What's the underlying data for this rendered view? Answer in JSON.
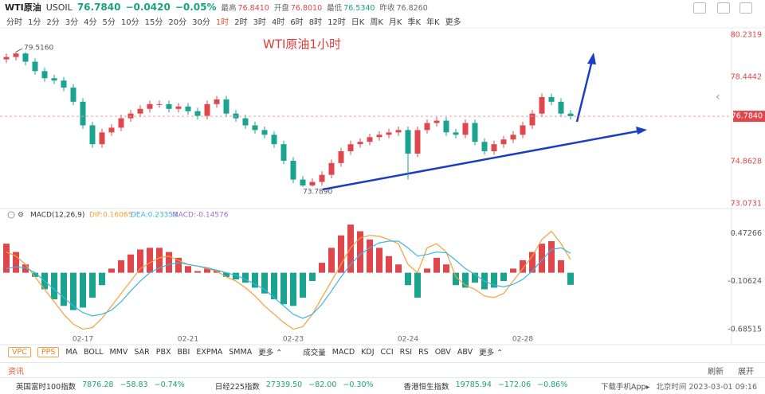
{
  "header": {
    "name": "WTI原油",
    "code": "USOIL",
    "price": "76.7840",
    "change": "−0.0420",
    "change_pct": "−0.05%",
    "stats": [
      {
        "label": "最高",
        "value": "76.8410"
      },
      {
        "label": "开盘",
        "value": "76.8010"
      },
      {
        "label": "最低",
        "value": "76.5340"
      },
      {
        "label": "昨收",
        "value": "76.8260"
      }
    ]
  },
  "periods": {
    "items": [
      "分时",
      "1分",
      "2分",
      "3分",
      "4分",
      "5分",
      "10分",
      "15分",
      "20分",
      "30分",
      "1时",
      "2时",
      "3时",
      "4时",
      "6时",
      "8时",
      "12时",
      "日K",
      "周K",
      "月K",
      "季K",
      "年K",
      "更多"
    ],
    "active": 10
  },
  "chart_data": [
    {
      "type": "candlestick",
      "title": "WTI原油1小时",
      "up_color": "#e0474c",
      "down_color": "#1aa38f",
      "categories": [
        null,
        null,
        null,
        null,
        null,
        null,
        null,
        null,
        "02-17",
        null,
        null,
        null,
        null,
        null,
        null,
        null,
        null,
        null,
        null,
        "02-21",
        null,
        null,
        null,
        null,
        null,
        null,
        null,
        null,
        null,
        null,
        "02-23",
        null,
        null,
        null,
        null,
        null,
        null,
        null,
        null,
        null,
        null,
        null,
        "02-24",
        null,
        null,
        null,
        null,
        null,
        null,
        null,
        null,
        null,
        null,
        null,
        "02-28",
        null,
        null,
        null,
        null,
        null
      ],
      "open": [
        79.2,
        79.3,
        79.45,
        79.1,
        78.7,
        78.4,
        78.3,
        78.0,
        77.4,
        76.4,
        75.6,
        76.1,
        76.3,
        76.7,
        76.9,
        77.1,
        77.3,
        77.3,
        77.1,
        77.2,
        77.0,
        76.8,
        77.3,
        77.5,
        76.9,
        76.7,
        76.4,
        76.2,
        76.0,
        75.6,
        74.9,
        74.1,
        73.85,
        74.0,
        74.3,
        74.8,
        75.3,
        75.6,
        75.7,
        75.9,
        76.0,
        76.1,
        76.2,
        75.2,
        76.2,
        76.5,
        76.6,
        76.1,
        76.0,
        76.5,
        75.7,
        75.3,
        75.6,
        75.8,
        76.0,
        76.4,
        76.9,
        77.6,
        77.4,
        76.9
      ],
      "high": [
        79.45,
        79.516,
        79.5,
        79.25,
        78.85,
        78.55,
        78.45,
        78.15,
        77.55,
        76.55,
        76.25,
        76.45,
        76.85,
        77.05,
        77.25,
        77.45,
        77.45,
        77.45,
        77.35,
        77.35,
        77.15,
        77.45,
        77.65,
        77.65,
        77.05,
        76.85,
        76.55,
        76.35,
        76.15,
        75.75,
        75.05,
        74.25,
        74.15,
        74.45,
        74.95,
        75.45,
        75.75,
        75.85,
        76.05,
        76.15,
        76.25,
        76.35,
        76.35,
        76.35,
        76.65,
        76.75,
        76.75,
        76.25,
        76.65,
        76.65,
        75.85,
        75.75,
        75.95,
        76.15,
        76.55,
        77.05,
        77.75,
        77.75,
        77.55,
        77.05
      ],
      "low": [
        79.05,
        79.15,
        78.95,
        78.55,
        78.25,
        78.15,
        77.85,
        77.25,
        76.25,
        75.45,
        75.45,
        75.95,
        76.15,
        76.55,
        76.75,
        76.95,
        77.15,
        76.95,
        76.95,
        76.85,
        76.65,
        76.65,
        77.15,
        76.75,
        76.55,
        76.25,
        76.05,
        75.85,
        75.45,
        74.75,
        73.95,
        73.789,
        73.8,
        73.85,
        74.15,
        74.65,
        75.15,
        75.45,
        75.55,
        75.75,
        75.85,
        75.95,
        74.1,
        75.05,
        76.05,
        76.35,
        75.95,
        75.85,
        75.85,
        75.55,
        75.15,
        75.15,
        75.45,
        75.65,
        75.85,
        76.25,
        76.75,
        77.25,
        76.75,
        76.65
      ],
      "close": [
        79.3,
        79.45,
        79.1,
        78.7,
        78.4,
        78.3,
        78.0,
        77.4,
        76.4,
        75.6,
        76.1,
        76.3,
        76.7,
        76.9,
        77.1,
        77.3,
        77.3,
        77.1,
        77.2,
        77.0,
        76.8,
        77.3,
        77.5,
        76.9,
        76.7,
        76.4,
        76.2,
        76.0,
        75.6,
        74.9,
        74.1,
        73.85,
        74.0,
        74.3,
        74.8,
        75.3,
        75.6,
        75.7,
        75.9,
        76.0,
        76.1,
        76.2,
        75.2,
        76.2,
        76.5,
        76.6,
        76.1,
        76.0,
        76.5,
        75.7,
        75.3,
        75.6,
        75.8,
        76.0,
        76.4,
        76.9,
        77.6,
        77.4,
        76.9,
        76.784
      ],
      "ylim": [
        73.0731,
        80.2319
      ],
      "yticks": [
        73.0731,
        74.8628,
        78.4442,
        80.2319
      ],
      "annotations": {
        "high_label": "79.5160",
        "low_label": "73.7890"
      }
    },
    {
      "type": "macd",
      "title": "MACD(12,26,9)",
      "ylim": [
        -0.79,
        0.62
      ],
      "yticks": [
        -0.68515,
        -0.10624,
        0.47266
      ],
      "histogram": {
        "label": "MACD:-0.14576",
        "label_color": "#a070d0",
        "up_color": "#e0474c",
        "down_color": "#1aa38f",
        "values": [
          0.35,
          0.25,
          0.1,
          -0.05,
          -0.2,
          -0.32,
          -0.4,
          -0.45,
          -0.42,
          -0.3,
          -0.15,
          0.05,
          0.15,
          0.22,
          0.28,
          0.3,
          0.3,
          0.25,
          0.18,
          0.08,
          0.02,
          0.05,
          0.03,
          -0.05,
          -0.08,
          -0.12,
          -0.18,
          -0.25,
          -0.32,
          -0.38,
          -0.4,
          -0.3,
          -0.1,
          0.12,
          0.3,
          0.45,
          0.58,
          0.5,
          0.4,
          0.3,
          0.2,
          0.1,
          -0.15,
          -0.3,
          0.05,
          0.18,
          0.1,
          -0.15,
          -0.18,
          -0.12,
          -0.2,
          -0.18,
          -0.1,
          0.05,
          0.15,
          0.25,
          0.35,
          0.38,
          0.15,
          -0.14576
        ]
      },
      "series": [
        {
          "label": "DIF:0.16065",
          "color": "#f5a03a",
          "values": [
            0.25,
            0.2,
            0.1,
            -0.05,
            -0.2,
            -0.35,
            -0.5,
            -0.62,
            -0.68,
            -0.66,
            -0.55,
            -0.4,
            -0.25,
            -0.1,
            0.05,
            0.12,
            0.18,
            0.2,
            0.15,
            0.1,
            0.08,
            0.05,
            0.02,
            -0.05,
            -0.1,
            -0.18,
            -0.28,
            -0.4,
            -0.5,
            -0.6,
            -0.68,
            -0.65,
            -0.5,
            -0.3,
            -0.1,
            0.1,
            0.3,
            0.42,
            0.45,
            0.44,
            0.4,
            0.35,
            0.1,
            0.0,
            0.3,
            0.35,
            0.25,
            -0.05,
            -0.15,
            -0.2,
            -0.28,
            -0.3,
            -0.25,
            -0.1,
            0.05,
            0.2,
            0.4,
            0.5,
            0.35,
            0.16065
          ]
        },
        {
          "label": "DEA:0.23353",
          "color": "#3cb4e6",
          "values": [
            0.05,
            0.07,
            0.06,
            0.0,
            -0.1,
            -0.2,
            -0.3,
            -0.4,
            -0.48,
            -0.52,
            -0.5,
            -0.45,
            -0.35,
            -0.22,
            -0.1,
            0.0,
            0.06,
            0.1,
            0.12,
            0.1,
            0.08,
            0.06,
            0.03,
            0.0,
            -0.03,
            -0.08,
            -0.14,
            -0.2,
            -0.3,
            -0.4,
            -0.5,
            -0.55,
            -0.5,
            -0.38,
            -0.22,
            -0.05,
            0.1,
            0.22,
            0.3,
            0.36,
            0.38,
            0.38,
            0.3,
            0.2,
            0.22,
            0.25,
            0.24,
            0.15,
            0.05,
            -0.02,
            -0.1,
            -0.15,
            -0.17,
            -0.14,
            -0.08,
            0.02,
            0.15,
            0.28,
            0.3,
            0.23353
          ]
        }
      ]
    }
  ],
  "indicators": {
    "boxed": [
      "VPC",
      "PPS"
    ],
    "main": [
      "MA",
      "BOLL",
      "MMV",
      "SAR",
      "PBX",
      "BBI",
      "EXPMA",
      "SMMA",
      "更多 ⌃"
    ],
    "sub": [
      "成交量",
      "MACD",
      "KDJ",
      "CCI",
      "RSI",
      "RS",
      "OBV",
      "ABV",
      "更多 ⌃"
    ]
  },
  "info": {
    "title": "资讯",
    "refresh": "刷新",
    "expand": "展开"
  },
  "tickers": [
    {
      "name": "英国富时100指数",
      "price": "7876.28",
      "change": "−58.83",
      "pct": "−0.74%"
    },
    {
      "name": "日经225指数",
      "price": "27339.50",
      "change": "−82.00",
      "pct": "−0.30%"
    },
    {
      "name": "香港恒生指数",
      "price": "19785.94",
      "change": "−172.06",
      "pct": "−0.86%"
    }
  ],
  "footer": {
    "app": "下载手机App▸",
    "time": "北京时间 2023-03-01 09:16"
  }
}
